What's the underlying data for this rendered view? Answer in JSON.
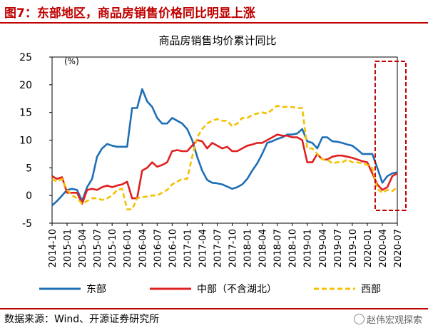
{
  "figure": {
    "title": "图7：东部地区，商品房销售价格同比明显上涨",
    "source": "数据来源：Wind、开源证券研究所",
    "watermark": "赵伟宏观探索"
  },
  "colors": {
    "east": "#1f6fb5",
    "central": "#e02020",
    "west": "#f5c000",
    "accent": "#c00000"
  },
  "chart_data": {
    "type": "line",
    "title": "商品房销售均价累计同比",
    "unit_label": "(%)",
    "ylim": [
      -5,
      25
    ],
    "yticks": [
      -5,
      0,
      5,
      10,
      15,
      20,
      25
    ],
    "xtick_labels": [
      "2014-10",
      "2015-01",
      "2015-04",
      "2015-07",
      "2015-10",
      "2016-01",
      "2016-04",
      "2016-07",
      "2016-10",
      "2017-01",
      "2017-04",
      "2017-07",
      "2017-10",
      "2018-01",
      "2018-04",
      "2018-07",
      "2018-10",
      "2019-01",
      "2019-04",
      "2019-07",
      "2019-10",
      "2020-01",
      "2020-04",
      "2020-07"
    ],
    "x": [
      "2014-10",
      "2014-11",
      "2014-12",
      "2015-01",
      "2015-02",
      "2015-03",
      "2015-04",
      "2015-05",
      "2015-06",
      "2015-07",
      "2015-08",
      "2015-09",
      "2015-10",
      "2015-11",
      "2015-12",
      "2016-01",
      "2016-02",
      "2016-03",
      "2016-04",
      "2016-05",
      "2016-06",
      "2016-07",
      "2016-08",
      "2016-09",
      "2016-10",
      "2016-11",
      "2016-12",
      "2017-01",
      "2017-02",
      "2017-03",
      "2017-04",
      "2017-05",
      "2017-06",
      "2017-07",
      "2017-08",
      "2017-09",
      "2017-10",
      "2017-11",
      "2017-12",
      "2018-01",
      "2018-02",
      "2018-03",
      "2018-04",
      "2018-05",
      "2018-06",
      "2018-07",
      "2018-08",
      "2018-09",
      "2018-10",
      "2018-11",
      "2018-12",
      "2019-01",
      "2019-02",
      "2019-03",
      "2019-04",
      "2019-05",
      "2019-06",
      "2019-07",
      "2019-08",
      "2019-09",
      "2019-10",
      "2019-11",
      "2019-12",
      "2020-01",
      "2020-02",
      "2020-03",
      "2020-04",
      "2020-05",
      "2020-06",
      "2020-07"
    ],
    "series": [
      {
        "name": "东部",
        "key": "east",
        "dashed": false,
        "values": [
          -1.8,
          -1.0,
          0.0,
          1.0,
          1.2,
          1.0,
          -1.0,
          1.5,
          3.0,
          7.0,
          8.5,
          9.3,
          9.0,
          8.8,
          8.8,
          8.8,
          15.8,
          15.8,
          19.2,
          17.0,
          16.0,
          14.0,
          13.0,
          13.0,
          14.0,
          13.5,
          13.0,
          12.0,
          10.0,
          7.0,
          4.5,
          2.8,
          2.3,
          2.2,
          2.0,
          1.6,
          1.2,
          1.5,
          2.0,
          3.0,
          4.5,
          5.8,
          7.5,
          9.5,
          9.8,
          10.2,
          10.5,
          11.0,
          11.0,
          11.2,
          12.0,
          9.8,
          9.5,
          8.5,
          10.5,
          10.5,
          9.8,
          9.7,
          9.5,
          9.2,
          9.0,
          8.3,
          7.5,
          7.5,
          7.5,
          5.0,
          2.3,
          3.5,
          4.0,
          4.2
        ]
      },
      {
        "name": "中部（不含湖北）",
        "key": "central",
        "dashed": false,
        "values": [
          3.5,
          3.0,
          3.3,
          0.5,
          0.5,
          0.5,
          -1.5,
          1.0,
          1.2,
          1.0,
          1.5,
          1.8,
          1.5,
          1.8,
          2.0,
          2.5,
          -0.5,
          -0.5,
          4.5,
          5.0,
          6.0,
          5.2,
          5.5,
          6.0,
          8.0,
          8.2,
          8.0,
          8.0,
          9.0,
          10.0,
          9.8,
          8.5,
          9.5,
          9.0,
          8.5,
          8.8,
          8.0,
          8.0,
          8.5,
          9.0,
          9.2,
          9.5,
          9.5,
          10.0,
          10.5,
          11.0,
          10.8,
          10.8,
          10.5,
          10.5,
          10.0,
          6.0,
          6.0,
          7.5,
          6.5,
          6.5,
          7.0,
          7.2,
          7.2,
          7.0,
          6.8,
          6.5,
          6.2,
          6.0,
          4.0,
          2.0,
          1.0,
          1.5,
          3.5,
          4.0
        ]
      },
      {
        "name": "西部",
        "key": "west",
        "dashed": true,
        "values": [
          3.0,
          2.5,
          3.0,
          1.0,
          0.0,
          -0.5,
          -1.5,
          -1.0,
          -0.5,
          -0.5,
          -0.8,
          -0.5,
          0.0,
          1.0,
          1.2,
          -2.5,
          -2.5,
          -0.5,
          -0.3,
          -0.2,
          0.0,
          0.0,
          0.5,
          1.0,
          2.0,
          2.5,
          3.0,
          3.0,
          7.0,
          10.5,
          12.0,
          13.0,
          13.5,
          13.8,
          13.5,
          13.5,
          12.5,
          13.0,
          14.0,
          14.0,
          14.5,
          14.8,
          15.0,
          14.8,
          15.5,
          16.2,
          16.0,
          16.0,
          16.0,
          15.8,
          15.8,
          8.5,
          8.5,
          7.5,
          6.5,
          6.5,
          5.8,
          6.0,
          6.0,
          6.5,
          6.0,
          6.0,
          5.8,
          5.5,
          5.0,
          1.2,
          0.5,
          1.0,
          0.8,
          1.5
        ]
      }
    ],
    "highlight": {
      "from": "2020-04",
      "to": "2020-07",
      "style": "red dashed box"
    },
    "legend_position": "bottom",
    "grid": false
  }
}
